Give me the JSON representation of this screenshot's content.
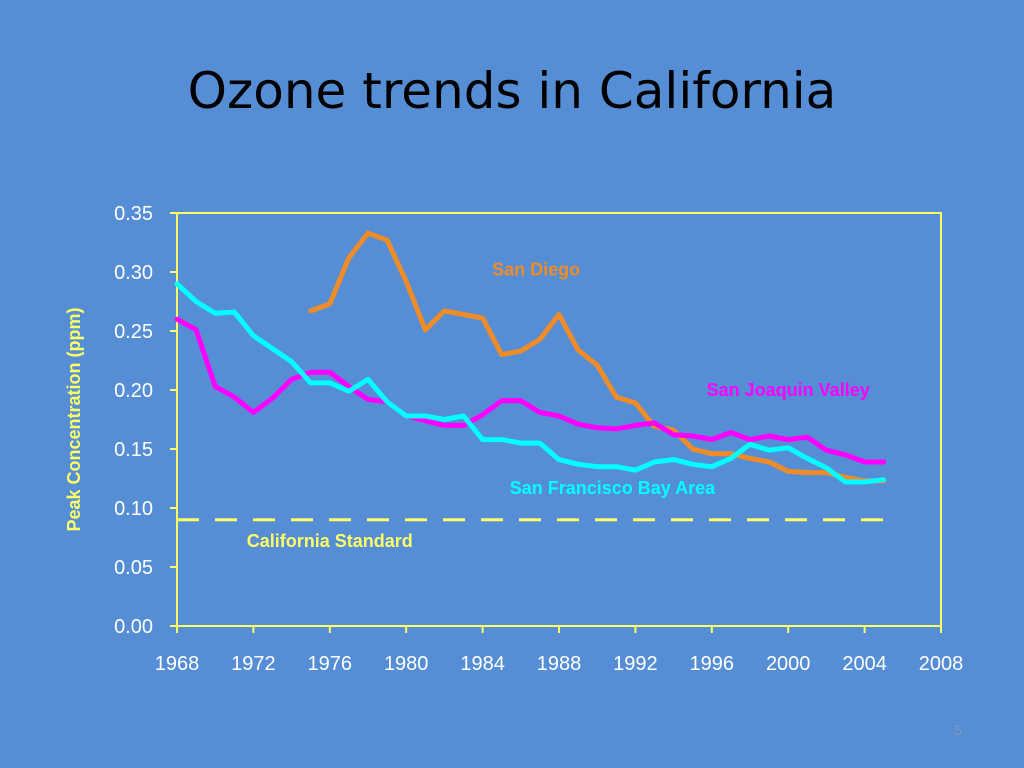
{
  "slide": {
    "title": "Ozone trends in California",
    "number": "5",
    "background": "#558ed5"
  },
  "chart_data": {
    "type": "line",
    "title": "",
    "xlabel": "",
    "ylabel": "Peak Concentration (ppm)",
    "xlim": [
      1968,
      2008
    ],
    "ylim": [
      0,
      0.35
    ],
    "x_ticks": [
      "1968",
      "1972",
      "1976",
      "1980",
      "1984",
      "1988",
      "1992",
      "1996",
      "2000",
      "2004",
      "2008"
    ],
    "y_ticks": [
      "0.00",
      "0.05",
      "0.10",
      "0.15",
      "0.20",
      "0.25",
      "0.30",
      "0.35"
    ],
    "grid": false,
    "colors": {
      "axis": "#ffff66"
    },
    "series": [
      {
        "name": "San Diego",
        "color": "#f08c28",
        "x": [
          1975,
          1976,
          1977,
          1978,
          1979,
          1980,
          1981,
          1982,
          1983,
          1984,
          1985,
          1986,
          1987,
          1988,
          1989,
          1990,
          1991,
          1992,
          1993,
          1994,
          1995,
          1996,
          1997,
          1998,
          1999,
          2000,
          2001,
          2002,
          2003,
          2004,
          2005
        ],
        "y": [
          0.267,
          0.273,
          0.312,
          0.333,
          0.327,
          0.292,
          0.251,
          0.267,
          0.264,
          0.261,
          0.23,
          0.233,
          0.243,
          0.264,
          0.234,
          0.221,
          0.194,
          0.189,
          0.169,
          0.166,
          0.15,
          0.146,
          0.146,
          0.142,
          0.139,
          0.131,
          0.13,
          0.13,
          0.126,
          0.123,
          0.123
        ]
      },
      {
        "name": "San Joaquin Valley",
        "color": "#ff00ff",
        "x": [
          1968,
          1969,
          1970,
          1971,
          1972,
          1973,
          1974,
          1975,
          1976,
          1977,
          1978,
          1979,
          1980,
          1981,
          1982,
          1983,
          1984,
          1985,
          1986,
          1987,
          1988,
          1989,
          1990,
          1991,
          1992,
          1993,
          1994,
          1995,
          1996,
          1997,
          1998,
          1999,
          2000,
          2001,
          2002,
          2003,
          2004,
          2005
        ],
        "y": [
          0.26,
          0.251,
          0.203,
          0.194,
          0.181,
          0.193,
          0.209,
          0.215,
          0.215,
          0.203,
          0.192,
          0.19,
          0.178,
          0.174,
          0.17,
          0.17,
          0.179,
          0.191,
          0.191,
          0.181,
          0.178,
          0.171,
          0.168,
          0.167,
          0.17,
          0.172,
          0.162,
          0.161,
          0.158,
          0.164,
          0.158,
          0.161,
          0.158,
          0.16,
          0.149,
          0.145,
          0.139,
          0.139
        ]
      },
      {
        "name": "San Francisco Bay Area",
        "color": "#00ffff",
        "x": [
          1968,
          1969,
          1970,
          1971,
          1972,
          1973,
          1974,
          1975,
          1976,
          1977,
          1978,
          1979,
          1980,
          1981,
          1982,
          1983,
          1984,
          1985,
          1986,
          1987,
          1988,
          1989,
          1990,
          1991,
          1992,
          1993,
          1994,
          1995,
          1996,
          1997,
          1998,
          1999,
          2000,
          2001,
          2002,
          2003,
          2004,
          2005
        ],
        "y": [
          0.29,
          0.275,
          0.265,
          0.266,
          0.246,
          0.235,
          0.224,
          0.206,
          0.206,
          0.199,
          0.209,
          0.19,
          0.178,
          0.178,
          0.175,
          0.178,
          0.158,
          0.158,
          0.155,
          0.155,
          0.141,
          0.137,
          0.135,
          0.135,
          0.132,
          0.139,
          0.141,
          0.137,
          0.135,
          0.142,
          0.154,
          0.149,
          0.151,
          0.142,
          0.134,
          0.122,
          0.122,
          0.124
        ]
      },
      {
        "name": "California Standard",
        "color": "#ffff66",
        "dashed": true,
        "x": [
          1968,
          2005
        ],
        "y": [
          0.09,
          0.09
        ]
      }
    ],
    "annotations": [
      {
        "text": "San Diego",
        "color": "#f08c28",
        "x": 1986.8,
        "y": 0.297
      },
      {
        "text": "San Joaquin Valley",
        "color": "#ff00ff",
        "x": 2000.0,
        "y": 0.195
      },
      {
        "text": "San Francisco Bay Area",
        "color": "#00ffff",
        "x": 1990.8,
        "y": 0.112
      },
      {
        "text": "California Standard",
        "color": "#ffff66",
        "x": 1976.0,
        "y": 0.067
      }
    ]
  }
}
